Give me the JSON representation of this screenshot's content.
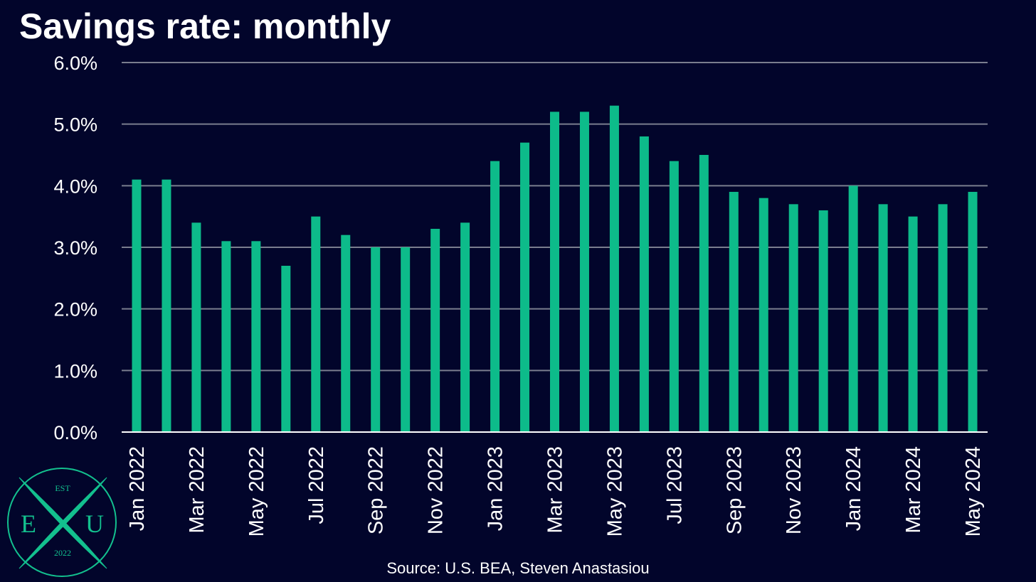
{
  "chart_data": {
    "type": "bar",
    "title": "Savings rate: monthly",
    "source": "Source: U.S. BEA, Steven Anastasiou",
    "xlabel": "",
    "ylabel": "",
    "ylim": [
      0,
      6
    ],
    "yticks": [
      {
        "value": 0,
        "label": "0.0%"
      },
      {
        "value": 1,
        "label": "1.0%"
      },
      {
        "value": 2,
        "label": "2.0%"
      },
      {
        "value": 3,
        "label": "3.0%"
      },
      {
        "value": 4,
        "label": "4.0%"
      },
      {
        "value": 5,
        "label": "5.0%"
      },
      {
        "value": 6,
        "label": "6.0%"
      }
    ],
    "grid": true,
    "legend": "none",
    "categories": [
      "Jan 2022",
      "Feb 2022",
      "Mar 2022",
      "Apr 2022",
      "May 2022",
      "Jun 2022",
      "Jul 2022",
      "Aug 2022",
      "Sep 2022",
      "Oct 2022",
      "Nov 2022",
      "Dec 2022",
      "Jan 2023",
      "Feb 2023",
      "Mar 2023",
      "Apr 2023",
      "May 2023",
      "Jun 2023",
      "Jul 2023",
      "Aug 2023",
      "Sep 2023",
      "Oct 2023",
      "Nov 2023",
      "Dec 2023",
      "Jan 2024",
      "Feb 2024",
      "Mar 2024",
      "Apr 2024",
      "May 2024"
    ],
    "tick_labels": [
      "Jan 2022",
      "",
      "Mar 2022",
      "",
      "May 2022",
      "",
      "Jul 2022",
      "",
      "Sep 2022",
      "",
      "Nov 2022",
      "",
      "Jan 2023",
      "",
      "Mar 2023",
      "",
      "May 2023",
      "",
      "Jul 2023",
      "",
      "Sep 2023",
      "",
      "Nov 2023",
      "",
      "Jan 2024",
      "",
      "Mar 2024",
      "",
      "May 2024"
    ],
    "values": [
      4.1,
      4.1,
      3.4,
      3.1,
      3.1,
      2.7,
      3.5,
      3.2,
      3.0,
      3.0,
      3.3,
      3.4,
      4.4,
      4.7,
      5.2,
      5.2,
      5.3,
      4.8,
      4.4,
      4.5,
      3.9,
      3.8,
      3.7,
      3.6,
      4.0,
      3.7,
      3.5,
      3.7,
      3.9
    ],
    "colors": {
      "background": "#02052b",
      "bar": "#0dbb8a",
      "grid": "#7a7d8e",
      "axis": "#ffffff",
      "text": "#ffffff"
    }
  },
  "logo": {
    "top": "EST",
    "left": "E",
    "right": "U",
    "bottom": "2022",
    "color": "#13c08e"
  }
}
